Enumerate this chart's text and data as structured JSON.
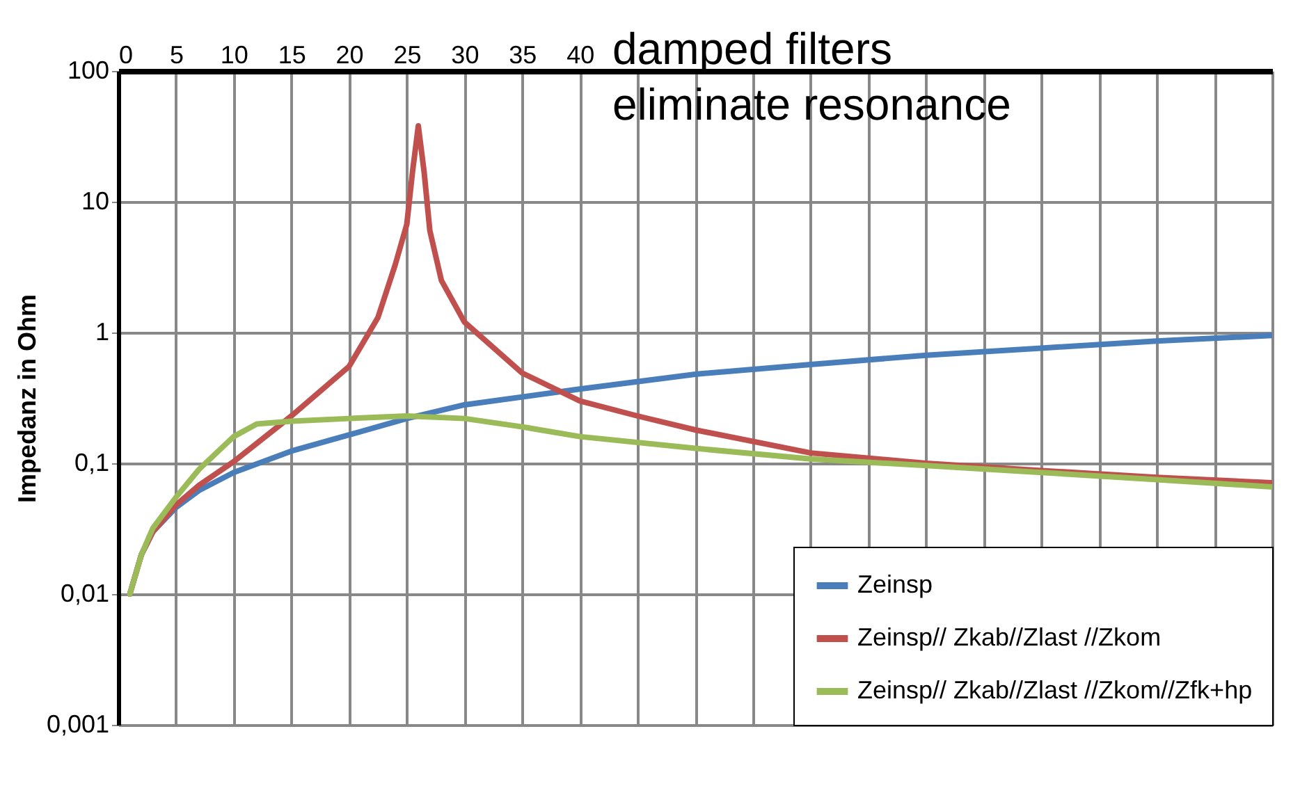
{
  "chart_data": {
    "type": "line",
    "ylabel": "Impedanz in Ohm",
    "log": "y",
    "grid": true,
    "legend": "bottom right",
    "line_style": "solid",
    "marker": "none",
    "annotations": [
      "damped filters\neliminate resonance"
    ],
    "xlim": [
      0,
      100
    ],
    "xticks": [
      0,
      5,
      10,
      15,
      20,
      25,
      30,
      35,
      40,
      {
        "value": 45,
        "label": null
      },
      {
        "value": 50,
        "label": null
      },
      {
        "value": 55,
        "label": null
      },
      {
        "value": 60,
        "label": null
      },
      {
        "value": 65,
        "label": null
      },
      {
        "value": 70,
        "label": null
      },
      {
        "value": 75,
        "label": null
      },
      {
        "value": 80,
        "label": null
      },
      {
        "value": 85,
        "label": null
      },
      {
        "value": 90,
        "label": null
      },
      {
        "value": 95,
        "label": null
      },
      {
        "value": 100,
        "label": null
      }
    ],
    "ylim": [
      0.001,
      100
    ],
    "yticks": [
      {
        "value": 0.001,
        "label": "0,001"
      },
      {
        "value": 0.01,
        "label": "0,01"
      },
      {
        "value": 0.1,
        "label": "0,1"
      },
      1,
      10,
      100
    ],
    "series": [
      {
        "name": "Zeinsp",
        "color": "#4a7ebb",
        "x": [
          1,
          2,
          3,
          5,
          7,
          10,
          15,
          20,
          25,
          30,
          40,
          50,
          60,
          70,
          80,
          90,
          100
        ],
        "values": [
          0.01,
          0.02,
          0.03,
          0.046,
          0.062,
          0.085,
          0.124,
          0.165,
          0.22,
          0.28,
          0.37,
          0.48,
          0.57,
          0.67,
          0.76,
          0.86,
          0.95
        ]
      },
      {
        "name": "Zeinsp// Zkab//Zlast //Zkom",
        "color": "#c0504d",
        "x": [
          1,
          2,
          3,
          5,
          7,
          10,
          15,
          20,
          22.5,
          24,
          25,
          25.5,
          26,
          26.5,
          27,
          28,
          30,
          35,
          40,
          45,
          50,
          60,
          70,
          80,
          90,
          100
        ],
        "values": [
          0.01,
          0.02,
          0.03,
          0.048,
          0.068,
          0.103,
          0.23,
          0.55,
          1.3,
          3.3,
          6.7,
          17,
          38,
          17,
          6,
          2.5,
          1.2,
          0.49,
          0.3,
          0.23,
          0.18,
          0.12,
          0.1,
          0.088,
          0.078,
          0.071
        ]
      },
      {
        "name": "Zeinsp// Zkab//Zlast //Zkom//Zfk+hp",
        "color": "#9bbb59",
        "x": [
          1,
          2,
          3,
          5,
          7,
          10,
          12,
          15,
          20,
          25,
          30,
          35,
          40,
          50,
          60,
          70,
          80,
          90,
          100
        ],
        "values": [
          0.01,
          0.02,
          0.032,
          0.055,
          0.09,
          0.16,
          0.2,
          0.21,
          0.22,
          0.23,
          0.22,
          0.19,
          0.16,
          0.13,
          0.108,
          0.096,
          0.085,
          0.075,
          0.066
        ]
      }
    ]
  }
}
